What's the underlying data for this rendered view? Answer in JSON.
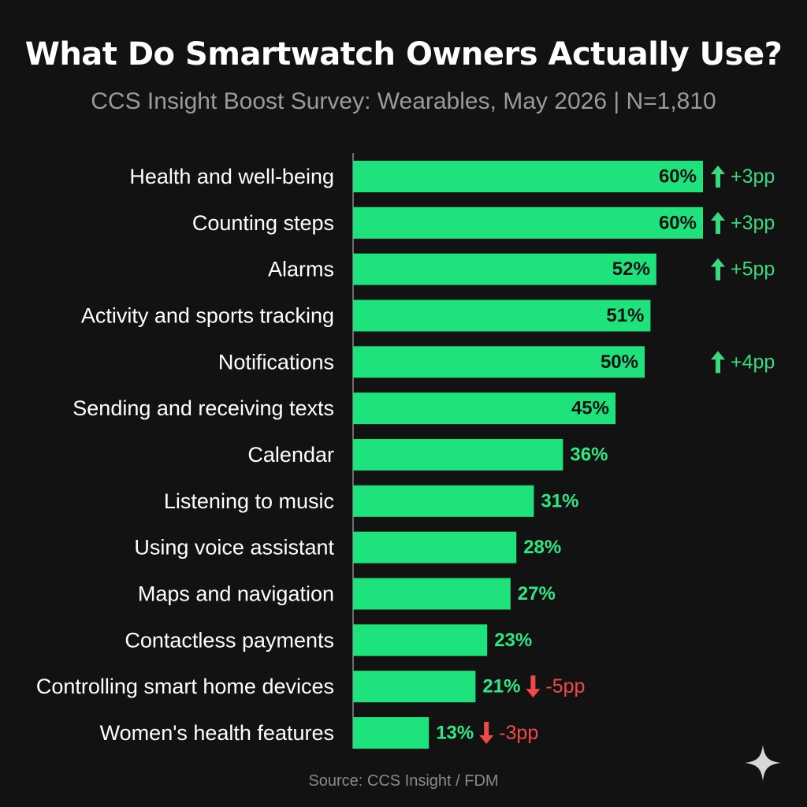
{
  "title": "What Do Smartwatch Owners Actually Use?",
  "subtitle": "CCS Insight Boost Survey: Wearables, May 2026 | N=1,810",
  "source": "Source: CCS Insight / FDM",
  "colors": {
    "background": "#121212",
    "bar": "#1ee37d",
    "label_inside": "#111111",
    "label_outside": "#2ee886",
    "up": "#39d97d",
    "down": "#ef4a4a"
  },
  "chart_data": {
    "type": "bar",
    "orientation": "horizontal",
    "categories": [
      "Health and well-being",
      "Counting steps",
      "Alarms",
      "Activity and sports tracking",
      "Notifications",
      "Sending and receiving texts",
      "Calendar",
      "Listening to music",
      "Using voice assistant",
      "Maps and navigation",
      "Contactless payments",
      "Controlling smart home devices",
      "Women's health features"
    ],
    "values": [
      60,
      60,
      52,
      51,
      50,
      45,
      36,
      31,
      28,
      27,
      23,
      21,
      13
    ],
    "value_labels": [
      "60%",
      "60%",
      "52%",
      "51%",
      "50%",
      "45%",
      "36%",
      "31%",
      "28%",
      "27%",
      "23%",
      "21%",
      "13%"
    ],
    "changes": [
      {
        "direction": "up",
        "text": "+3pp"
      },
      {
        "direction": "up",
        "text": "+3pp"
      },
      {
        "direction": "up",
        "text": "+5pp"
      },
      null,
      {
        "direction": "up",
        "text": "+4pp"
      },
      null,
      null,
      null,
      null,
      null,
      null,
      {
        "direction": "down",
        "text": "-5pp"
      },
      {
        "direction": "down",
        "text": "-3pp"
      }
    ],
    "xlim": [
      0,
      60
    ],
    "grid": false,
    "legend": "none"
  }
}
